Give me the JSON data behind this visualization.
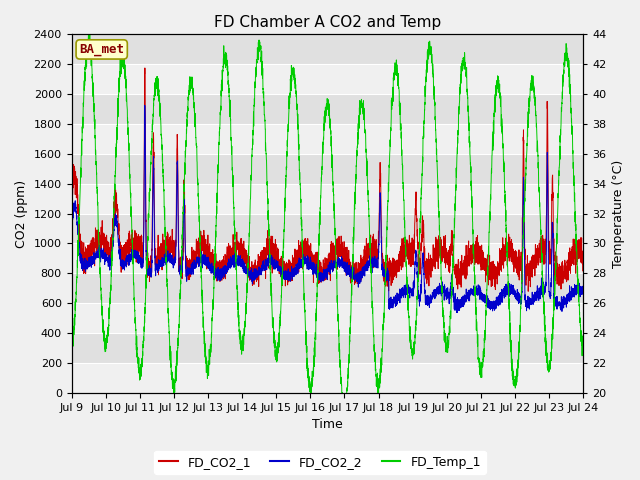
{
  "title": "FD Chamber A CO2 and Temp",
  "xlabel": "Time",
  "ylabel_left": "CO2 (ppm)",
  "ylabel_right": "Temperature (°C)",
  "ylim_left": [
    0,
    2400
  ],
  "ylim_right": [
    20,
    44
  ],
  "yticks_left": [
    0,
    200,
    400,
    600,
    800,
    1000,
    1200,
    1400,
    1600,
    1800,
    2000,
    2200,
    2400
  ],
  "yticks_right": [
    20,
    22,
    24,
    26,
    28,
    30,
    32,
    34,
    36,
    38,
    40,
    42,
    44
  ],
  "xtick_labels": [
    "Jul 9",
    "Jul 10",
    "Jul 11",
    "Jul 12",
    "Jul 13",
    "Jul 14",
    "Jul 15",
    "Jul 16",
    "Jul 17",
    "Jul 18",
    "Jul 19",
    "Jul 20",
    "Jul 21",
    "Jul 22",
    "Jul 23",
    "Jul 24"
  ],
  "color_co2_1": "#cc0000",
  "color_co2_2": "#0000cc",
  "color_temp": "#00cc00",
  "legend_labels": [
    "FD_CO2_1",
    "FD_CO2_2",
    "FD_Temp_1"
  ],
  "annotation_text": "BA_met",
  "annotation_box_color": "#ffffcc",
  "annotation_box_edge": "#999900",
  "outer_bg": "#f0f0f0",
  "plot_bg_light": "#f0f0f0",
  "plot_bg_dark": "#e0e0e0",
  "grid_color": "#ffffff",
  "title_fontsize": 11,
  "axis_fontsize": 9,
  "tick_fontsize": 8,
  "legend_fontsize": 9
}
